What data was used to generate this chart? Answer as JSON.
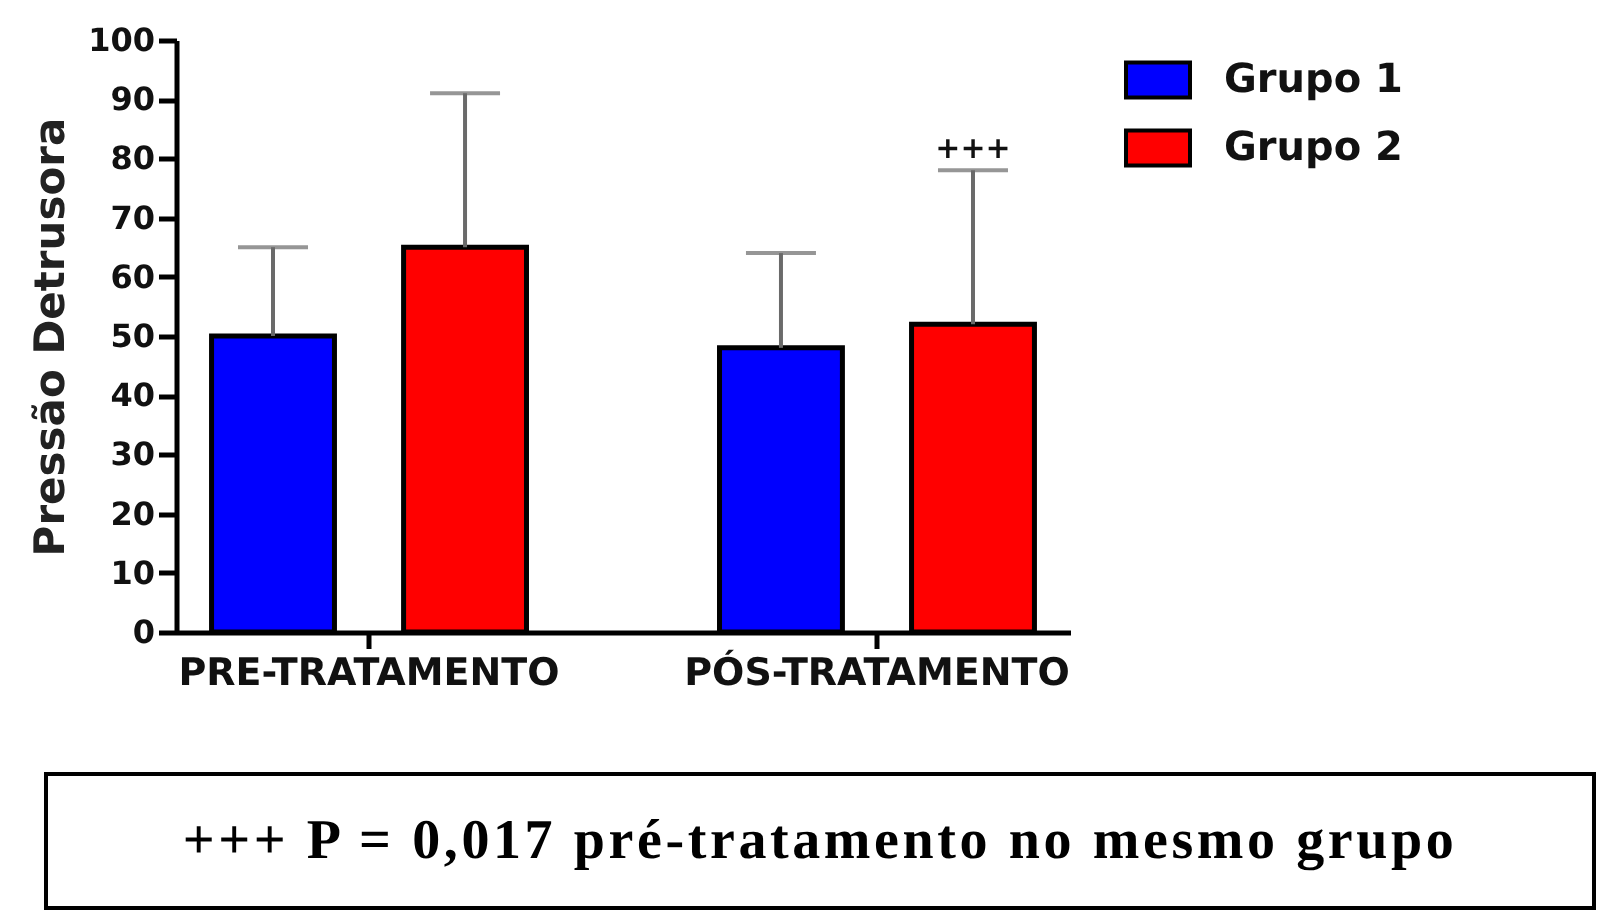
{
  "chart_data": {
    "type": "bar",
    "ylabel": "Pressão Detrusora",
    "categories": [
      "PRE-TRATAMENTO",
      "PÓS-TRATAMENTO"
    ],
    "series": [
      {
        "name": "Grupo 1",
        "color": "#0000ff",
        "values": [
          50,
          48
        ],
        "errors": [
          [
            50,
            65
          ],
          [
            48,
            64
          ]
        ]
      },
      {
        "name": "Grupo 2",
        "color": "#ff0000",
        "values": [
          65,
          52
        ],
        "errors": [
          [
            65,
            91
          ],
          [
            52,
            78
          ]
        ]
      }
    ],
    "ylim": [
      0,
      100
    ],
    "yticks": [
      0,
      10,
      20,
      30,
      40,
      50,
      60,
      70,
      80,
      90,
      100
    ],
    "legend": "top right",
    "annotations": [
      "+++",
      "+++ P = 0,017 pré-tratamento no mesmo grupo"
    ]
  }
}
